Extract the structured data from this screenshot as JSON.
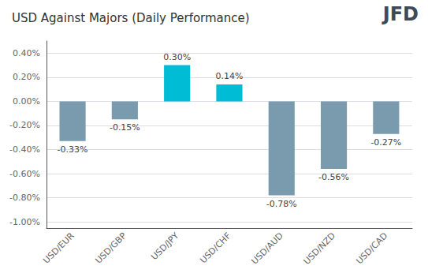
{
  "chart_data": {
    "type": "bar",
    "title": "USD Against Majors (Daily Performance)",
    "categories": [
      "USD/EUR",
      "USD/GBP",
      "USD/JPY",
      "USD/CHF",
      "USD/AUD",
      "USD/NZD",
      "USD/CAD"
    ],
    "values": [
      -0.33,
      -0.15,
      0.3,
      0.14,
      -0.78,
      -0.56,
      -0.27
    ],
    "value_labels": [
      "-0.33%",
      "-0.15%",
      "0.30%",
      "0.14%",
      "-0.78%",
      "-0.56%",
      "-0.27%"
    ],
    "colors": [
      "#7A9BAD",
      "#7A9BAD",
      "#00BCD4",
      "#00BCD4",
      "#7A9BAD",
      "#7A9BAD",
      "#7A9BAD"
    ],
    "ylim": [
      -1.05,
      0.5
    ],
    "yticks": [
      {
        "value": -1.0,
        "label": "-1.00%"
      },
      {
        "value": -0.8,
        "label": "-0.80%"
      },
      {
        "value": -0.6,
        "label": "-0.60%"
      },
      {
        "value": -0.4,
        "label": "-0.40%"
      },
      {
        "value": -0.2,
        "label": "-0.20%"
      },
      {
        "value": 0.0,
        "label": "0.00%"
      },
      {
        "value": 0.2,
        "label": "0.20%"
      },
      {
        "value": 0.4,
        "label": "0.40%"
      }
    ],
    "grid": true,
    "data_labels": true,
    "annotations": [
      {
        "text": "JFD",
        "color": "#3B4B5A"
      }
    ]
  }
}
